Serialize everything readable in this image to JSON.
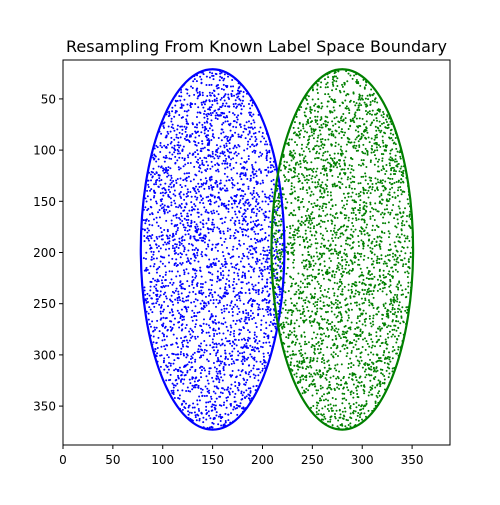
{
  "chart_data": {
    "type": "scatter",
    "title": "Resampling From Known Label Space Boundary",
    "xlabel": "",
    "ylabel": "",
    "xlim": [
      0,
      388
    ],
    "ylim": [
      388,
      12
    ],
    "y_inverted": true,
    "x_ticks": [
      0,
      50,
      100,
      150,
      200,
      250,
      300,
      350
    ],
    "y_ticks": [
      50,
      100,
      150,
      200,
      250,
      300,
      350
    ],
    "grid": false,
    "legend": "none",
    "series": [
      {
        "color": "#0000ff",
        "boundary": {
          "shape": "ellipse",
          "center": [
            150,
            197
          ],
          "semi_axis_x": 72,
          "semi_axis_y": 176
        },
        "points": {
          "distribution": "uniform-inside-boundary",
          "approx_count": 3000
        }
      },
      {
        "color": "#008000",
        "boundary": {
          "shape": "ellipse",
          "center": [
            280,
            197
          ],
          "semi_axis_x": 71,
          "semi_axis_y": 176
        },
        "points": {
          "distribution": "uniform-inside-boundary",
          "approx_count": 3000
        }
      }
    ]
  }
}
